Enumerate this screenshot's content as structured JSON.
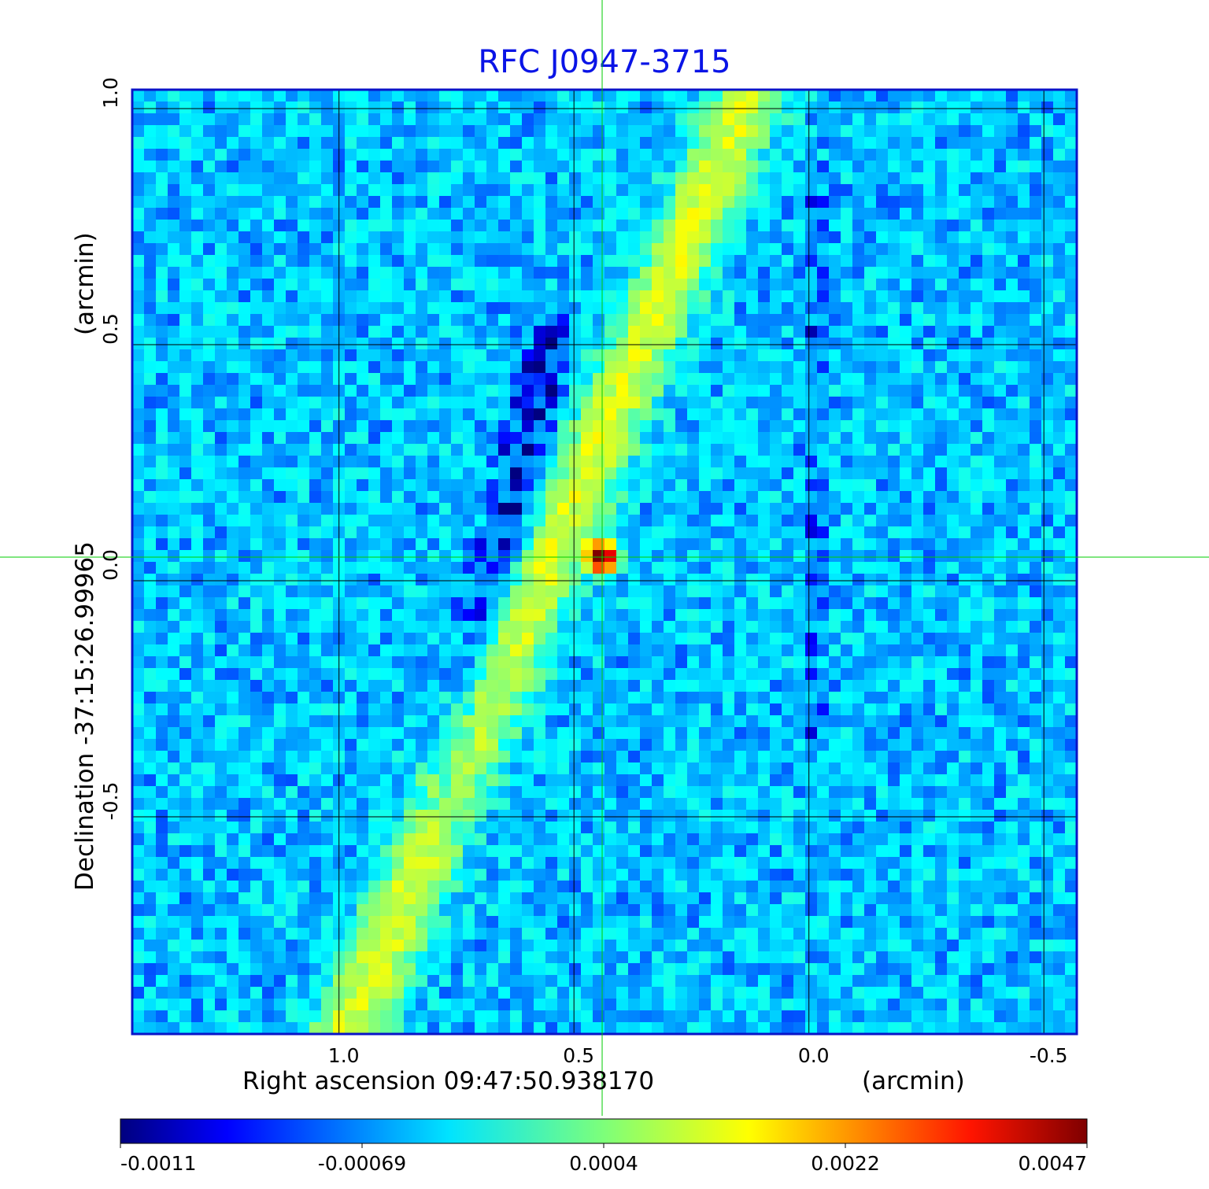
{
  "chart_data": {
    "type": "heatmap",
    "title": "RFC J0947-3715",
    "xlabel": "Right ascension  09:47:50.938170",
    "xunit": "(arcmin)",
    "ylabel": "Declination  -37:15:26.99965",
    "yunit": "(arcmin)",
    "x_ticks": [
      1.0,
      0.5,
      0.0,
      -0.5
    ],
    "x_tick_labels": [
      "1.0",
      "0.5",
      "0.0",
      "-0.5"
    ],
    "y_ticks": [
      1.0,
      0.5,
      0.0,
      -0.5
    ],
    "y_tick_labels": [
      "1.0",
      "0.5",
      "0.0",
      "-0.5"
    ],
    "xlim": [
      1.44,
      -0.57
    ],
    "ylim": [
      -0.96,
      1.04
    ],
    "grid": true,
    "crosshair": {
      "x": 0.44,
      "y": 0.05,
      "color": "#00cc00"
    },
    "colorbar": {
      "colormap": "jet",
      "placement": "bottom",
      "tick_labels": [
        "-0.0011",
        "-0.00069",
        "0.0004",
        "0.0022",
        "0.0047"
      ]
    },
    "peak_value": 0.0047,
    "min_value": -0.0011,
    "background_level": -0.0004,
    "features": [
      {
        "name": "core",
        "x": 0.44,
        "y": 0.05,
        "value": 0.0047
      },
      {
        "name": "jet-ridge",
        "from": [
          1.0,
          -1.0
        ],
        "to": [
          0.12,
          1.05
        ],
        "value": 0.0015
      },
      {
        "name": "negative-sidelobe",
        "from": [
          0.55,
          0.5
        ],
        "to": [
          0.78,
          -0.5
        ],
        "value": -0.0011
      },
      {
        "name": "negative-column",
        "x": -0.01,
        "y_range": [
          -0.35,
          0.9
        ],
        "value": -0.0009
      }
    ]
  }
}
